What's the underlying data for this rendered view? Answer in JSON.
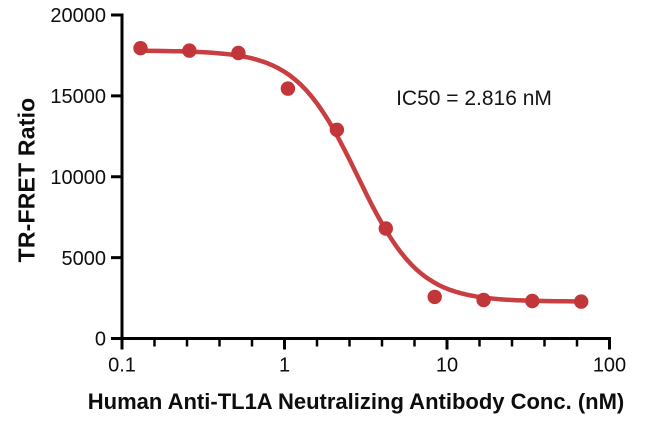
{
  "chart_data": {
    "type": "scatter",
    "title": "",
    "xlabel": "Human Anti-TL1A Neutralizing Antibody Conc. (nM)",
    "ylabel": "TR-FRET Ratio",
    "annotation": "IC50 = 2.816 nM",
    "ic50_nM": 2.816,
    "x_scale": "log",
    "xlim": [
      0.1,
      100
    ],
    "ylim": [
      0,
      20000
    ],
    "grid": false,
    "legend_position": "none",
    "x_ticks": {
      "values": [
        0.1,
        1,
        10,
        100
      ],
      "labels": [
        "0.1",
        "1",
        "10",
        "100"
      ]
    },
    "y_ticks": {
      "values": [
        0,
        5000,
        10000,
        15000,
        20000
      ],
      "labels": [
        "0",
        "5000",
        "10000",
        "15000",
        "20000"
      ]
    },
    "colors": {
      "curve": "#c93e41",
      "marker": "#c23539",
      "axis": "#000000",
      "text": "#0d0d0d"
    },
    "series": [
      {
        "name": "Human Anti-TL1A Neutralizing Antibody",
        "points": [
          {
            "x": 0.13,
            "y": 17950
          },
          {
            "x": 0.26,
            "y": 17800
          },
          {
            "x": 0.52,
            "y": 17650
          },
          {
            "x": 1.05,
            "y": 15450
          },
          {
            "x": 2.1,
            "y": 12900
          },
          {
            "x": 4.2,
            "y": 6800
          },
          {
            "x": 8.4,
            "y": 2570
          },
          {
            "x": 16.8,
            "y": 2380
          },
          {
            "x": 33.5,
            "y": 2320
          },
          {
            "x": 67,
            "y": 2280
          }
        ]
      }
    ],
    "fit": {
      "model": "4PL",
      "top": 17800,
      "bottom": 2280,
      "ic50": 2.816,
      "hill": 2.3,
      "curve_x_start": 0.13,
      "curve_x_end": 68
    }
  }
}
